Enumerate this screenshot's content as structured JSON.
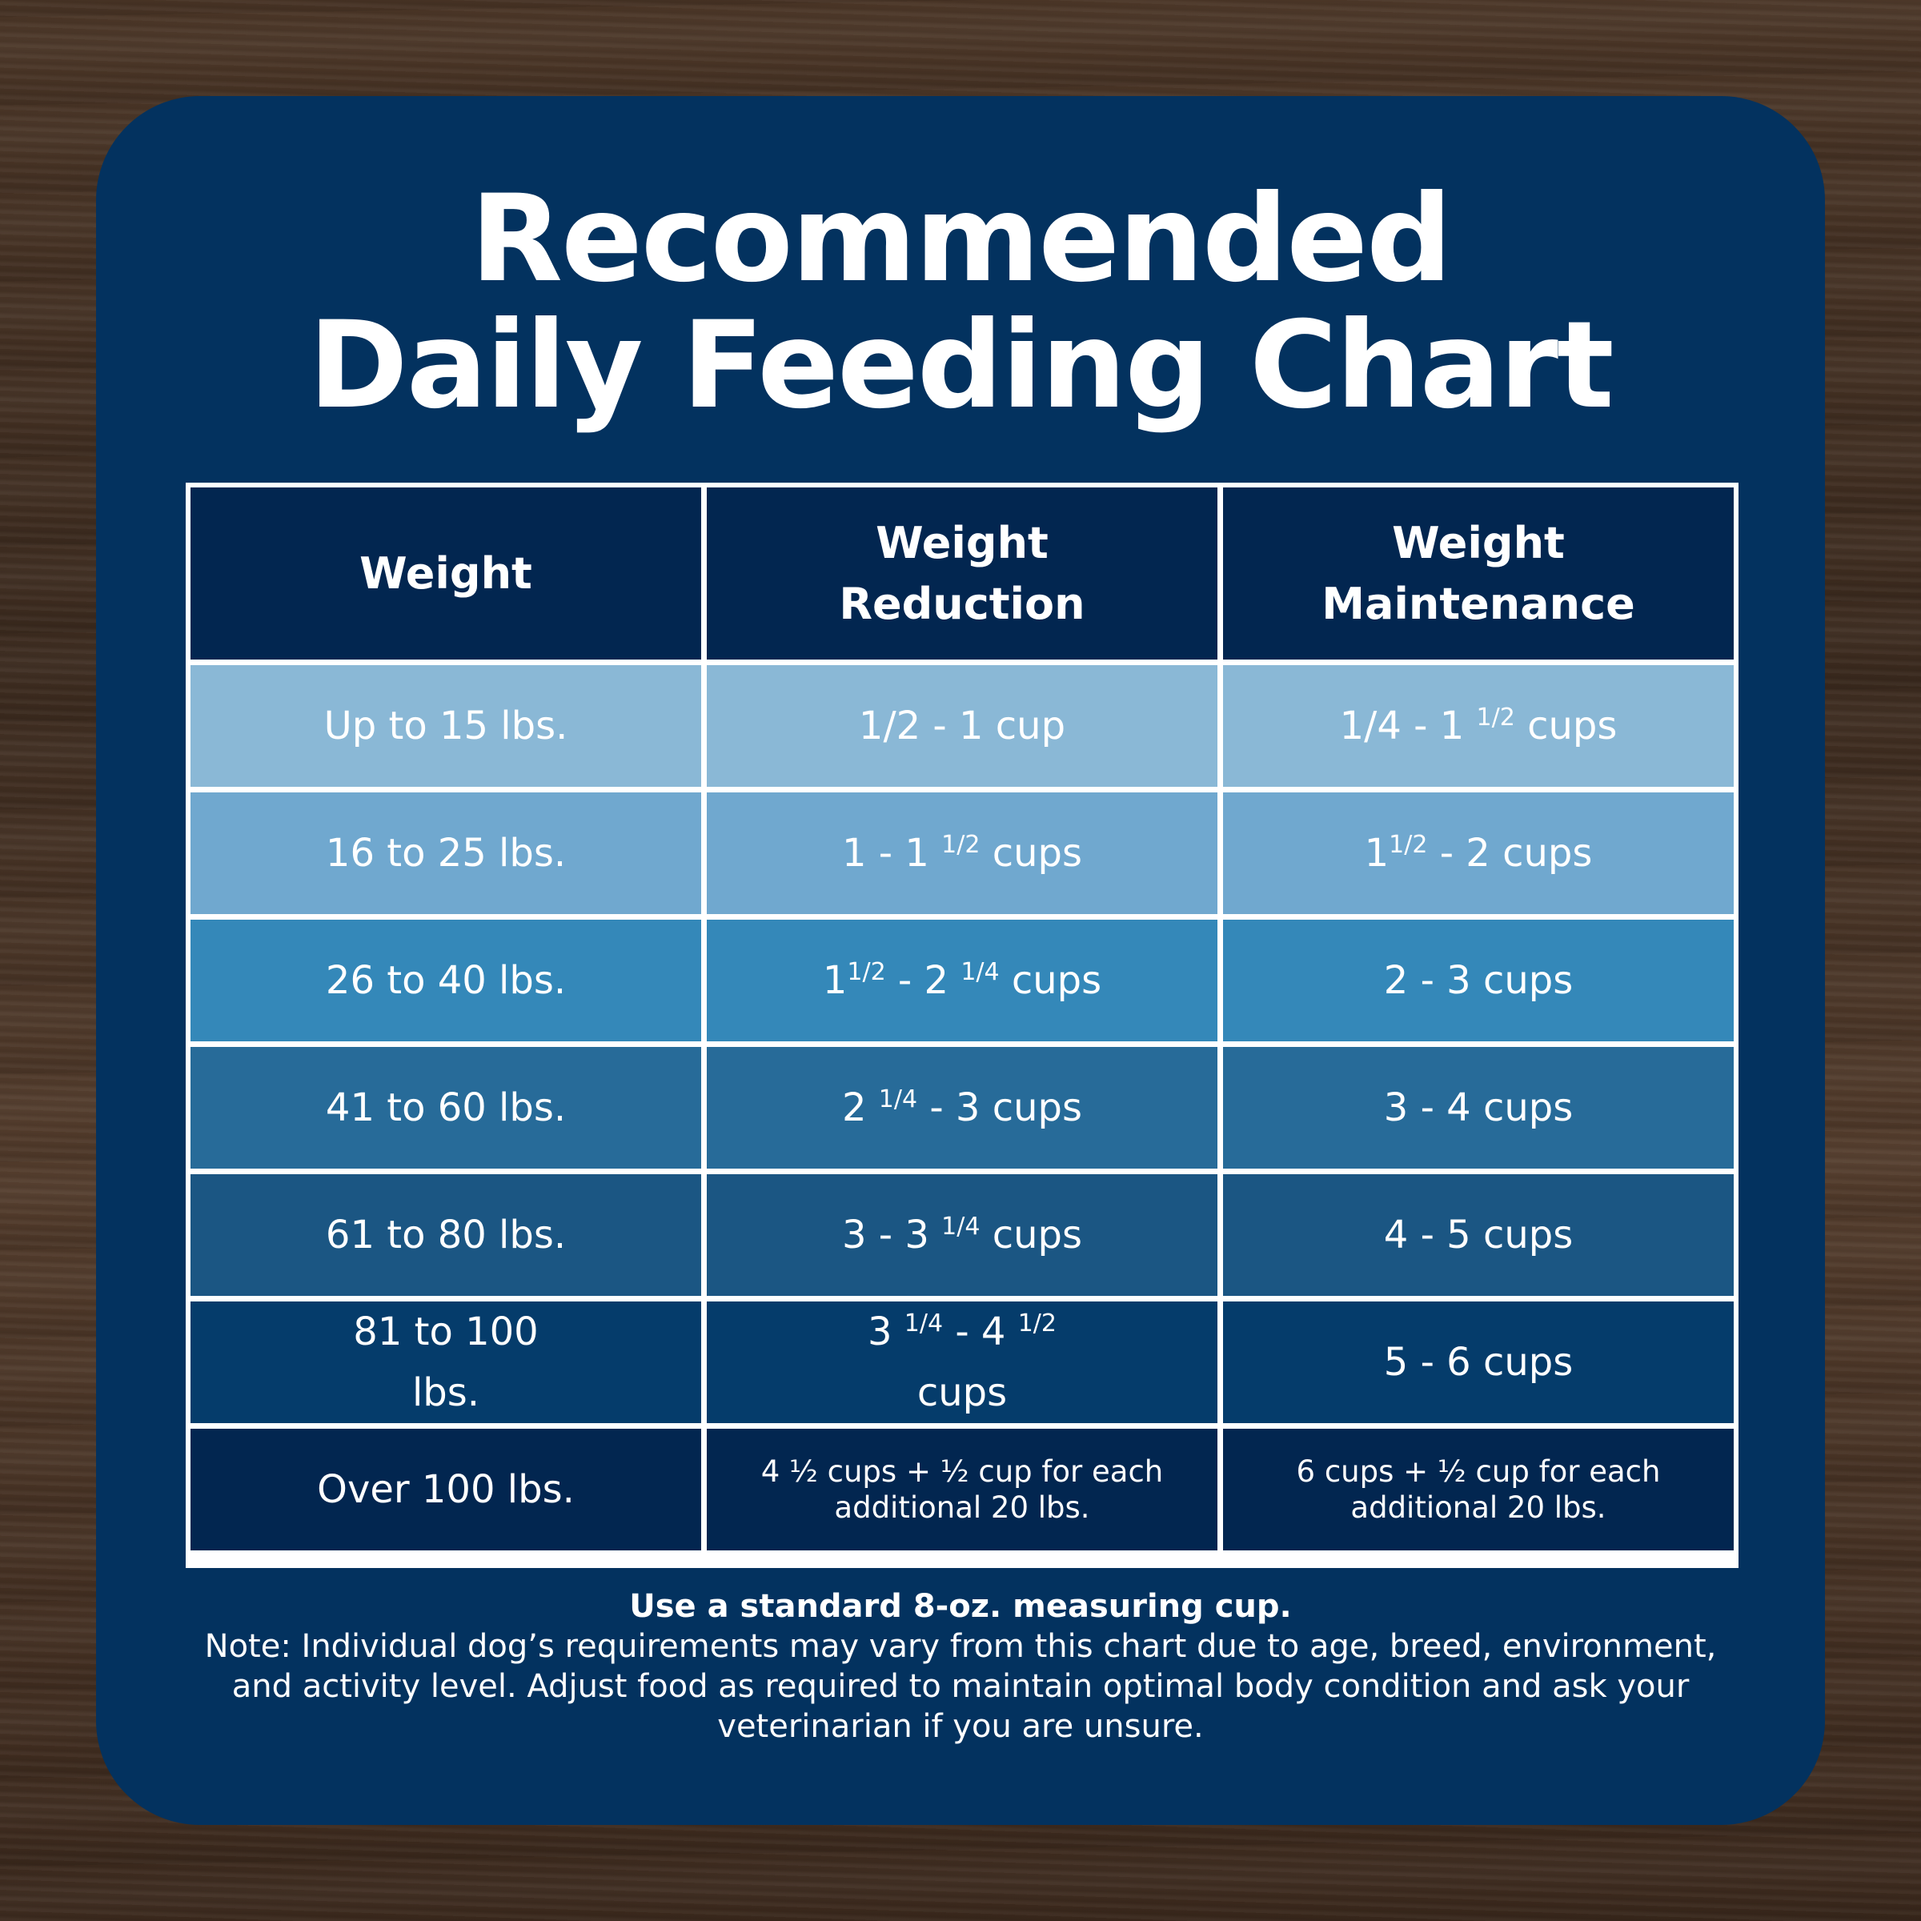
{
  "title": {
    "line1": "Recommended",
    "line2": "Daily Feeding Chart"
  },
  "table": {
    "headers": [
      {
        "line1": "Weight",
        "line2": ""
      },
      {
        "line1": "Weight",
        "line2": "Reduction"
      },
      {
        "line1": "Weight",
        "line2": "Maintenance"
      }
    ],
    "rows": [
      {
        "weight": "Up to 15 lbs.",
        "reduction": "1/2 - 1 cup",
        "maintenance": [
          "1/4 - 1 ",
          "1/2",
          " cups"
        ]
      },
      {
        "weight": "16 to 25 lbs.",
        "reduction": [
          "1 - 1 ",
          "1/2",
          " cups"
        ],
        "maintenance": [
          "1",
          "1/2",
          " - 2 cups"
        ]
      },
      {
        "weight": "26 to 40 lbs.",
        "reduction": [
          "1",
          "1/2",
          " - 2 ",
          "1/4",
          " cups"
        ],
        "maintenance": "2 - 3 cups"
      },
      {
        "weight": "41 to 60 lbs.",
        "reduction": [
          "2 ",
          "1/4",
          " - 3 cups"
        ],
        "maintenance": "3 - 4 cups"
      },
      {
        "weight": "61 to 80 lbs.",
        "reduction": [
          "3 - 3 ",
          "1/4",
          " cups"
        ],
        "maintenance": "4 - 5 cups"
      },
      {
        "weight": [
          "81 to 100",
          "lbs."
        ],
        "reduction": [
          "3 ",
          "1/4",
          " - 4 ",
          "1/2",
          "cups"
        ],
        "maintenance": "5 - 6 cups"
      },
      {
        "weight": "Over 100 lbs.",
        "reduction": [
          "4 ½ cups  + ½ cup for each",
          "additional 20 lbs."
        ],
        "maintenance": [
          "6 cups  + ½ cup for each",
          "additional 20 lbs."
        ]
      }
    ]
  },
  "footer": {
    "bold": "Use a standard 8-oz. measuring cup.",
    "note": "Note: Individual dog’s requirements may vary from this chart due to age, breed, environment, and activity level. Adjust food as required to maintain optimal body condition and ask your veterinarian if you are unsure."
  }
}
